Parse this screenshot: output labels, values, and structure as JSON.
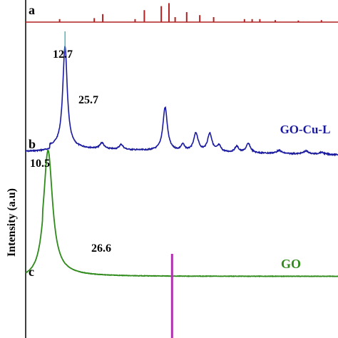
{
  "chart_data": {
    "type": "line",
    "ylabel": "Intensity (a.u)",
    "panels": [
      {
        "letter": "a",
        "kind": "stick",
        "color": "#b22222",
        "peaks": [
          {
            "x": 12.0,
            "rel": 0.15
          },
          {
            "x": 16.5,
            "rel": 0.2
          },
          {
            "x": 17.6,
            "rel": 0.4
          },
          {
            "x": 21.8,
            "rel": 0.15
          },
          {
            "x": 23.0,
            "rel": 0.6
          },
          {
            "x": 25.2,
            "rel": 0.8
          },
          {
            "x": 26.2,
            "rel": 0.95
          },
          {
            "x": 27.0,
            "rel": 0.25
          },
          {
            "x": 28.5,
            "rel": 0.5
          },
          {
            "x": 30.2,
            "rel": 0.35
          },
          {
            "x": 32.0,
            "rel": 0.25
          },
          {
            "x": 36.0,
            "rel": 0.15
          },
          {
            "x": 37.0,
            "rel": 0.15
          },
          {
            "x": 38.0,
            "rel": 0.15
          },
          {
            "x": 40.0,
            "rel": 0.1
          },
          {
            "x": 43.0,
            "rel": 0.08
          },
          {
            "x": 46.0,
            "rel": 0.1
          }
        ]
      },
      {
        "letter": "b",
        "name": "GO-Cu-L",
        "kind": "line",
        "color": "#1a1aa0",
        "peaks": [
          {
            "x": 12.7,
            "rel": 1.0,
            "label": "12.7",
            "width": 0.35
          },
          {
            "x": 17.5,
            "rel": 0.06,
            "width": 0.3
          },
          {
            "x": 20.0,
            "rel": 0.05,
            "width": 0.3
          },
          {
            "x": 25.7,
            "rel": 0.43,
            "label": "25.7",
            "width": 0.35
          },
          {
            "x": 28.0,
            "rel": 0.06,
            "width": 0.3
          },
          {
            "x": 29.7,
            "rel": 0.18,
            "width": 0.35
          },
          {
            "x": 31.5,
            "rel": 0.18,
            "width": 0.35
          },
          {
            "x": 32.7,
            "rel": 0.06,
            "width": 0.3
          },
          {
            "x": 35.0,
            "rel": 0.06,
            "width": 0.3
          },
          {
            "x": 36.5,
            "rel": 0.09,
            "width": 0.35
          },
          {
            "x": 40.5,
            "rel": 0.03,
            "width": 0.4
          },
          {
            "x": 44.0,
            "rel": 0.03,
            "width": 0.4
          },
          {
            "x": 46.0,
            "rel": 0.02,
            "width": 0.4
          }
        ]
      },
      {
        "letter": "c",
        "name": "GO",
        "kind": "line",
        "color": "#2e8b1a",
        "peaks": [
          {
            "x": 10.5,
            "rel": 1.0,
            "label": "10.5",
            "width": 0.7
          }
        ]
      }
    ],
    "reference_line": {
      "x": 26.6,
      "label": "26.6",
      "color": "#b030b0"
    },
    "xlim": [
      5,
      60
    ]
  }
}
